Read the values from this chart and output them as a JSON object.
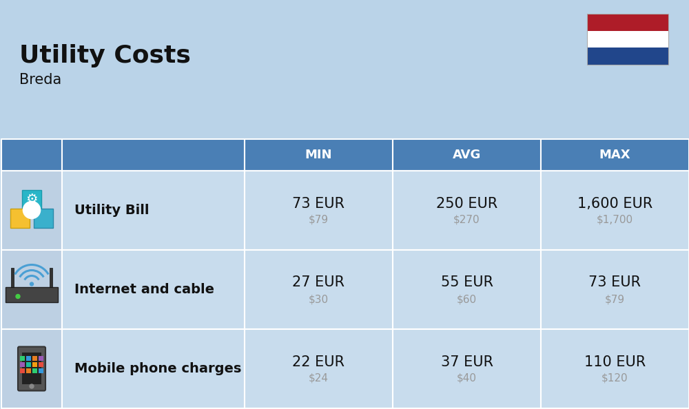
{
  "title": "Utility Costs",
  "subtitle": "Breda",
  "background_color": "#bad3e8",
  "header_color": "#4a7fb5",
  "header_text_color": "#ffffff",
  "row_bg": "#c8dced",
  "icon_bg": "#bdd0e3",
  "text_color_dark": "#111111",
  "text_color_usd": "#999999",
  "columns": [
    "MIN",
    "AVG",
    "MAX"
  ],
  "rows": [
    {
      "label": "Utility Bill",
      "min_eur": "73 EUR",
      "min_usd": "$79",
      "avg_eur": "250 EUR",
      "avg_usd": "$270",
      "max_eur": "1,600 EUR",
      "max_usd": "$1,700"
    },
    {
      "label": "Internet and cable",
      "min_eur": "27 EUR",
      "min_usd": "$30",
      "avg_eur": "55 EUR",
      "avg_usd": "$60",
      "max_eur": "73 EUR",
      "max_usd": "$79"
    },
    {
      "label": "Mobile phone charges",
      "min_eur": "22 EUR",
      "min_usd": "$24",
      "avg_eur": "37 EUR",
      "avg_usd": "$40",
      "max_eur": "110 EUR",
      "max_usd": "$120"
    }
  ],
  "flag_colors": [
    "#ae1c28",
    "#ffffff",
    "#21468b"
  ],
  "title_fontsize": 26,
  "subtitle_fontsize": 15,
  "header_fontsize": 13,
  "cell_eur_fontsize": 15,
  "cell_usd_fontsize": 11,
  "label_fontsize": 14
}
